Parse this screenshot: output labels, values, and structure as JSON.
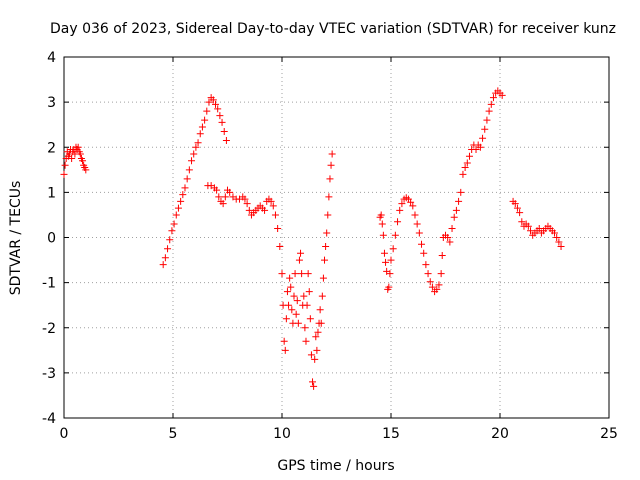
{
  "chart_data": {
    "type": "scatter",
    "title": "Day 036 of 2023, Sidereal Day-to-day VTEC variation (SDTVAR) for receiver kunz",
    "xlabel": "GPS time / hours",
    "ylabel": "SDTVAR / TECUs",
    "xlim": [
      0,
      25
    ],
    "ylim": [
      -4,
      4
    ],
    "xticks": [
      0,
      5,
      10,
      15,
      20,
      25
    ],
    "yticks": [
      -4,
      -3,
      -2,
      -1,
      0,
      1,
      2,
      3,
      4
    ],
    "grid": true,
    "marker": "plus",
    "color": "#ff0000",
    "series": [
      {
        "values": [
          [
            0.0,
            1.4
          ],
          [
            0.05,
            1.6
          ],
          [
            0.1,
            1.75
          ],
          [
            0.15,
            1.9
          ],
          [
            0.2,
            1.8
          ],
          [
            0.25,
            1.85
          ],
          [
            0.3,
            1.95
          ],
          [
            0.35,
            1.75
          ],
          [
            0.4,
            1.9
          ],
          [
            0.45,
            1.95
          ],
          [
            0.5,
            1.85
          ],
          [
            0.55,
            2.0
          ],
          [
            0.6,
            1.95
          ],
          [
            0.65,
            2.0
          ],
          [
            0.7,
            1.9
          ],
          [
            0.75,
            1.85
          ],
          [
            0.8,
            1.75
          ],
          [
            0.85,
            1.7
          ],
          [
            0.9,
            1.6
          ],
          [
            0.95,
            1.55
          ],
          [
            1.0,
            1.5
          ]
        ]
      },
      {
        "values": [
          [
            4.55,
            -0.6
          ],
          [
            4.65,
            -0.45
          ],
          [
            4.75,
            -0.25
          ],
          [
            4.85,
            -0.05
          ],
          [
            4.95,
            0.15
          ],
          [
            5.05,
            0.3
          ],
          [
            5.15,
            0.5
          ],
          [
            5.25,
            0.65
          ],
          [
            5.35,
            0.8
          ],
          [
            5.45,
            0.95
          ],
          [
            5.55,
            1.1
          ],
          [
            5.65,
            1.3
          ],
          [
            5.75,
            1.5
          ],
          [
            5.85,
            1.7
          ],
          [
            5.95,
            1.85
          ],
          [
            6.05,
            2.0
          ],
          [
            6.15,
            2.1
          ],
          [
            6.25,
            2.3
          ],
          [
            6.35,
            2.45
          ],
          [
            6.45,
            2.6
          ],
          [
            6.55,
            2.8
          ],
          [
            6.65,
            3.0
          ],
          [
            6.75,
            3.1
          ],
          [
            6.85,
            3.05
          ],
          [
            6.95,
            2.95
          ],
          [
            7.05,
            2.85
          ],
          [
            7.15,
            2.7
          ],
          [
            7.25,
            2.55
          ],
          [
            7.35,
            2.35
          ],
          [
            7.45,
            2.15
          ]
        ]
      },
      {
        "values": [
          [
            6.6,
            1.15
          ],
          [
            6.75,
            1.15
          ],
          [
            6.9,
            1.1
          ],
          [
            7.0,
            1.05
          ],
          [
            7.1,
            0.9
          ],
          [
            7.2,
            0.8
          ],
          [
            7.3,
            0.75
          ],
          [
            7.4,
            0.9
          ],
          [
            7.5,
            1.05
          ],
          [
            7.6,
            1.0
          ],
          [
            7.75,
            0.9
          ],
          [
            7.9,
            0.85
          ],
          [
            8.05,
            0.85
          ],
          [
            8.2,
            0.9
          ],
          [
            8.3,
            0.85
          ],
          [
            8.4,
            0.75
          ],
          [
            8.5,
            0.6
          ],
          [
            8.6,
            0.5
          ],
          [
            8.7,
            0.55
          ],
          [
            8.8,
            0.6
          ],
          [
            8.9,
            0.65
          ],
          [
            9.0,
            0.7
          ],
          [
            9.1,
            0.65
          ],
          [
            9.2,
            0.6
          ],
          [
            9.3,
            0.8
          ],
          [
            9.4,
            0.85
          ],
          [
            9.5,
            0.8
          ],
          [
            9.6,
            0.7
          ],
          [
            9.7,
            0.5
          ],
          [
            9.8,
            0.2
          ],
          [
            9.9,
            -0.2
          ],
          [
            10.0,
            -0.8
          ],
          [
            10.05,
            -1.5
          ],
          [
            10.1,
            -2.3
          ],
          [
            10.15,
            -2.5
          ],
          [
            10.2,
            -1.8
          ],
          [
            10.25,
            -1.2
          ],
          [
            10.3,
            -1.5
          ],
          [
            10.35,
            -0.9
          ],
          [
            10.4,
            -1.1
          ],
          [
            10.45,
            -1.6
          ],
          [
            10.5,
            -1.9
          ],
          [
            10.55,
            -1.3
          ],
          [
            10.6,
            -0.8
          ],
          [
            10.65,
            -1.7
          ],
          [
            10.7,
            -1.4
          ],
          [
            10.75,
            -1.9
          ],
          [
            10.8,
            -0.5
          ],
          [
            10.85,
            -0.35
          ],
          [
            10.9,
            -0.8
          ],
          [
            10.95,
            -1.5
          ],
          [
            11.0,
            -1.3
          ],
          [
            11.05,
            -2.0
          ],
          [
            11.1,
            -2.3
          ],
          [
            11.15,
            -1.5
          ],
          [
            11.2,
            -0.8
          ],
          [
            11.25,
            -1.2
          ],
          [
            11.3,
            -1.8
          ],
          [
            11.35,
            -2.6
          ],
          [
            11.4,
            -3.2
          ],
          [
            11.45,
            -3.3
          ],
          [
            11.5,
            -2.7
          ],
          [
            11.55,
            -2.2
          ],
          [
            11.6,
            -2.5
          ],
          [
            11.65,
            -2.1
          ],
          [
            11.7,
            -1.9
          ],
          [
            11.75,
            -1.6
          ],
          [
            11.8,
            -1.9
          ],
          [
            11.85,
            -1.3
          ],
          [
            11.9,
            -0.9
          ],
          [
            11.95,
            -0.5
          ],
          [
            12.0,
            -0.2
          ],
          [
            12.05,
            0.1
          ],
          [
            12.1,
            0.5
          ],
          [
            12.15,
            0.9
          ],
          [
            12.2,
            1.3
          ],
          [
            12.25,
            1.6
          ],
          [
            12.3,
            1.85
          ]
        ]
      },
      {
        "values": [
          [
            14.5,
            0.45
          ],
          [
            14.55,
            0.5
          ],
          [
            14.6,
            0.3
          ],
          [
            14.65,
            0.05
          ],
          [
            14.7,
            -0.35
          ],
          [
            14.75,
            -0.55
          ],
          [
            14.8,
            -0.75
          ],
          [
            14.85,
            -1.15
          ],
          [
            14.9,
            -1.1
          ],
          [
            14.95,
            -0.8
          ],
          [
            15.0,
            -0.5
          ],
          [
            15.1,
            -0.25
          ],
          [
            15.2,
            0.05
          ],
          [
            15.3,
            0.35
          ],
          [
            15.4,
            0.6
          ],
          [
            15.5,
            0.75
          ],
          [
            15.6,
            0.85
          ],
          [
            15.7,
            0.88
          ],
          [
            15.8,
            0.85
          ],
          [
            15.9,
            0.78
          ],
          [
            16.0,
            0.7
          ],
          [
            16.1,
            0.5
          ],
          [
            16.2,
            0.3
          ],
          [
            16.3,
            0.1
          ],
          [
            16.4,
            -0.15
          ],
          [
            16.5,
            -0.35
          ],
          [
            16.6,
            -0.6
          ],
          [
            16.7,
            -0.8
          ],
          [
            16.8,
            -0.98
          ],
          [
            16.9,
            -1.1
          ],
          [
            17.0,
            -1.2
          ],
          [
            17.1,
            -1.15
          ],
          [
            17.2,
            -1.05
          ],
          [
            17.3,
            -0.8
          ],
          [
            17.35,
            -0.4
          ],
          [
            17.4,
            0.0
          ],
          [
            17.5,
            0.05
          ],
          [
            17.6,
            0.0
          ],
          [
            17.7,
            -0.1
          ],
          [
            17.8,
            0.2
          ],
          [
            17.9,
            0.45
          ],
          [
            18.0,
            0.6
          ],
          [
            18.1,
            0.8
          ],
          [
            18.2,
            1.0
          ],
          [
            18.3,
            1.4
          ],
          [
            18.4,
            1.55
          ],
          [
            18.5,
            1.65
          ],
          [
            18.6,
            1.8
          ],
          [
            18.7,
            1.95
          ],
          [
            18.8,
            2.05
          ],
          [
            18.9,
            1.95
          ],
          [
            19.0,
            2.05
          ],
          [
            19.1,
            2.0
          ],
          [
            19.2,
            2.2
          ],
          [
            19.3,
            2.4
          ],
          [
            19.4,
            2.6
          ],
          [
            19.5,
            2.8
          ],
          [
            19.6,
            2.95
          ],
          [
            19.7,
            3.1
          ],
          [
            19.8,
            3.2
          ],
          [
            19.9,
            3.25
          ],
          [
            20.0,
            3.2
          ],
          [
            20.1,
            3.15
          ]
        ]
      },
      {
        "values": [
          [
            20.6,
            0.8
          ],
          [
            20.7,
            0.75
          ],
          [
            20.8,
            0.65
          ],
          [
            20.9,
            0.55
          ],
          [
            21.0,
            0.35
          ],
          [
            21.1,
            0.25
          ],
          [
            21.2,
            0.3
          ],
          [
            21.3,
            0.25
          ],
          [
            21.4,
            0.15
          ],
          [
            21.5,
            0.05
          ],
          [
            21.6,
            0.1
          ],
          [
            21.7,
            0.15
          ],
          [
            21.8,
            0.2
          ],
          [
            21.9,
            0.1
          ],
          [
            22.0,
            0.15
          ],
          [
            22.1,
            0.2
          ],
          [
            22.2,
            0.25
          ],
          [
            22.3,
            0.2
          ],
          [
            22.4,
            0.15
          ],
          [
            22.5,
            0.1
          ],
          [
            22.6,
            0.0
          ],
          [
            22.7,
            -0.1
          ],
          [
            22.8,
            -0.2
          ]
        ]
      }
    ]
  }
}
